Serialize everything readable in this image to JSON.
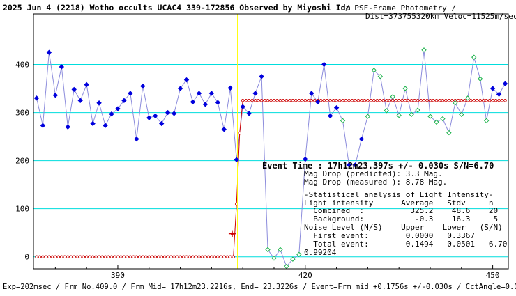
{
  "header": {
    "title": "2025 Jun 4 (2218) Wotho occults UCAC4 339-172856 Observed by Miyoshi Ida",
    "method": "/ PSF-Frame Photometry /",
    "dist_veloc": "Dist=373755320km Veloc=11525m/sec"
  },
  "footer": {
    "text": "Exp=202msec / Frm No.409.0 / Frm Mid= 17h12m23.2216s, End= 23.3226s / Event=Frm mid +0.1756s +/-0.030s / CctAngle=0.0deg"
  },
  "event": {
    "event_time": "Event Time : 17h12m23.397s  +/- 0.030s  S/N=6.70",
    "mag_drop_predicted": "Mag Drop (predicted):  3.3   Mag.",
    "mag_drop_measured": "Mag Drop (measured ):  8.78  Mag."
  },
  "stats": {
    "title": "-Statistical analysis of Light Intensity-",
    "header": "Light intensity      Average   Stdv     n",
    "combined": "  Combined  :          325.2    48.6    20",
    "background": "  Background:           -0.3    16.3     5",
    "noise_header": "Noise Level (N/S)    Upper    Lower   (S/N)",
    "first_event": "  First event:        0.0000   0.3367",
    "total_event": "  Total event:        0.1494   0.0501   6.70",
    "extra": "0.99204"
  },
  "chart_data": {
    "type": "scatter",
    "xlim": [
      376.5,
      452.5
    ],
    "ylim": [
      -25,
      505
    ],
    "x_ticks": [
      390,
      420,
      450
    ],
    "y_ticks": [
      0,
      100,
      200,
      300,
      400
    ],
    "grid": "horizontal",
    "event_frame": 409.18,
    "colors": {
      "observed_points": "#0000dd",
      "comparison_points": "#1bb34a",
      "model_curve": "#cc0000",
      "connecting_line": "#8c8cdc",
      "gridlines": "#00dddd",
      "event_line": "#ffff00"
    },
    "observed": {
      "x": [
        377,
        378,
        379,
        380,
        381,
        382,
        383,
        384,
        385,
        386,
        387,
        388,
        389,
        390,
        391,
        392,
        393,
        394,
        395,
        396,
        397,
        398,
        399,
        400,
        401,
        402,
        403,
        404,
        405,
        406,
        407,
        408,
        409,
        410,
        411,
        412,
        413,
        414,
        415,
        416,
        417,
        418,
        419,
        420,
        421,
        422,
        423,
        424,
        425,
        426,
        427,
        428,
        429,
        430,
        431,
        432,
        433,
        434,
        435,
        436,
        437,
        438,
        439,
        440,
        441,
        442,
        443,
        444,
        445,
        446,
        447,
        448,
        449,
        450,
        451,
        452
      ],
      "y": [
        330,
        273,
        425,
        336,
        395,
        270,
        348,
        325,
        358,
        277,
        320,
        273,
        297,
        308,
        325,
        340,
        245,
        355,
        289,
        293,
        277,
        300,
        298,
        350,
        368,
        322,
        340,
        317,
        340,
        321,
        265,
        351,
        202,
        312,
        298,
        340,
        375,
        15,
        -3,
        15,
        -20,
        -5,
        5,
        203,
        340,
        322,
        400,
        293,
        310,
        283,
        191,
        191,
        245,
        292,
        388,
        375,
        304,
        333,
        294,
        350,
        296,
        305,
        430,
        292,
        280,
        287,
        258,
        320,
        296,
        330,
        415,
        370,
        283,
        350,
        338,
        360
      ]
    },
    "comparison_indices": [
      37,
      38,
      39,
      40,
      41,
      42,
      49,
      53,
      54,
      55,
      56,
      57,
      58,
      59,
      60,
      61,
      62,
      63,
      64,
      65,
      66,
      67,
      68,
      69,
      70,
      71,
      72
    ],
    "model": {
      "low_level": 0,
      "high_level": 325.2,
      "x_start": 377,
      "x_end": 452,
      "step": 0.5
    }
  }
}
